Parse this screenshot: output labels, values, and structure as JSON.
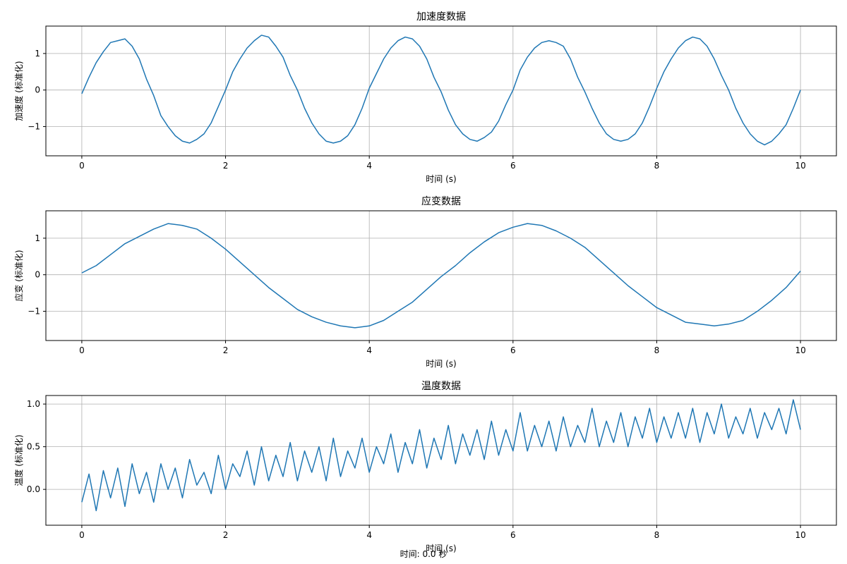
{
  "footer": {
    "time_readout": "时间: 0.0 秒"
  },
  "chart_data": [
    {
      "type": "line",
      "title": "加速度数据",
      "xlabel": "时间 (s)",
      "ylabel": "加速度 (标准化)",
      "xlim": [
        -0.5,
        10.5
      ],
      "ylim": [
        -1.8,
        1.75
      ],
      "xticks": [
        0,
        2,
        4,
        6,
        8,
        10
      ],
      "yticks": [
        -1,
        0,
        1
      ],
      "grid": true,
      "line_color": "#1f77b4",
      "series": [
        {
          "x": [
            0,
            0.1,
            0.2,
            0.3,
            0.4,
            0.5,
            0.6,
            0.7,
            0.8,
            0.9,
            1.0,
            1.1,
            1.2,
            1.3,
            1.4,
            1.5,
            1.6,
            1.7,
            1.8,
            1.9,
            2.0,
            2.1,
            2.2,
            2.3,
            2.4,
            2.5,
            2.6,
            2.7,
            2.8,
            2.9,
            3.0,
            3.1,
            3.2,
            3.3,
            3.4,
            3.5,
            3.6,
            3.7,
            3.8,
            3.9,
            4.0,
            4.1,
            4.2,
            4.3,
            4.4,
            4.5,
            4.6,
            4.7,
            4.8,
            4.9,
            5.0,
            5.1,
            5.2,
            5.3,
            5.4,
            5.5,
            5.6,
            5.7,
            5.8,
            5.9,
            6.0,
            6.1,
            6.2,
            6.3,
            6.4,
            6.5,
            6.6,
            6.7,
            6.8,
            6.9,
            7.0,
            7.1,
            7.2,
            7.3,
            7.4,
            7.5,
            7.6,
            7.7,
            7.8,
            7.9,
            8.0,
            8.1,
            8.2,
            8.3,
            8.4,
            8.5,
            8.6,
            8.7,
            8.8,
            8.9,
            9.0,
            9.1,
            9.2,
            9.3,
            9.4,
            9.5,
            9.6,
            9.7,
            9.8,
            9.9,
            10.0
          ],
          "y": [
            -0.1,
            0.35,
            0.75,
            1.05,
            1.3,
            1.35,
            1.4,
            1.2,
            0.85,
            0.3,
            -0.15,
            -0.7,
            -1.0,
            -1.25,
            -1.4,
            -1.45,
            -1.35,
            -1.2,
            -0.9,
            -0.45,
            0.0,
            0.5,
            0.85,
            1.15,
            1.35,
            1.5,
            1.45,
            1.2,
            0.9,
            0.4,
            0.0,
            -0.5,
            -0.9,
            -1.2,
            -1.4,
            -1.45,
            -1.4,
            -1.25,
            -0.95,
            -0.5,
            0.05,
            0.45,
            0.85,
            1.15,
            1.35,
            1.45,
            1.4,
            1.2,
            0.85,
            0.35,
            -0.05,
            -0.55,
            -0.95,
            -1.2,
            -1.35,
            -1.4,
            -1.3,
            -1.15,
            -0.85,
            -0.4,
            0.0,
            0.55,
            0.9,
            1.15,
            1.3,
            1.35,
            1.3,
            1.2,
            0.85,
            0.35,
            -0.05,
            -0.5,
            -0.9,
            -1.2,
            -1.35,
            -1.4,
            -1.35,
            -1.2,
            -0.9,
            -0.45,
            0.05,
            0.5,
            0.85,
            1.15,
            1.35,
            1.45,
            1.4,
            1.2,
            0.85,
            0.4,
            0.0,
            -0.5,
            -0.9,
            -1.2,
            -1.4,
            -1.5,
            -1.4,
            -1.2,
            -0.95,
            -0.5,
            0.0
          ]
        }
      ]
    },
    {
      "type": "line",
      "title": "应变数据",
      "xlabel": "时间 (s)",
      "ylabel": "应变 (标准化)",
      "xlim": [
        -0.5,
        10.5
      ],
      "ylim": [
        -1.8,
        1.75
      ],
      "xticks": [
        0,
        2,
        4,
        6,
        8,
        10
      ],
      "yticks": [
        -1,
        0,
        1
      ],
      "grid": true,
      "line_color": "#1f77b4",
      "series": [
        {
          "x": [
            0,
            0.2,
            0.4,
            0.6,
            0.8,
            1.0,
            1.2,
            1.4,
            1.6,
            1.8,
            2.0,
            2.2,
            2.4,
            2.6,
            2.8,
            3.0,
            3.2,
            3.4,
            3.6,
            3.8,
            4.0,
            4.2,
            4.4,
            4.6,
            4.8,
            5.0,
            5.2,
            5.4,
            5.6,
            5.8,
            6.0,
            6.2,
            6.4,
            6.6,
            6.8,
            7.0,
            7.2,
            7.4,
            7.6,
            7.8,
            8.0,
            8.2,
            8.4,
            8.6,
            8.8,
            9.0,
            9.2,
            9.4,
            9.6,
            9.8,
            10.0
          ],
          "y": [
            0.05,
            0.25,
            0.55,
            0.85,
            1.05,
            1.25,
            1.4,
            1.35,
            1.25,
            1.0,
            0.7,
            0.35,
            0.0,
            -0.35,
            -0.65,
            -0.95,
            -1.15,
            -1.3,
            -1.4,
            -1.45,
            -1.4,
            -1.25,
            -1.0,
            -0.75,
            -0.4,
            -0.05,
            0.25,
            0.6,
            0.9,
            1.15,
            1.3,
            1.4,
            1.35,
            1.2,
            1.0,
            0.75,
            0.4,
            0.05,
            -0.3,
            -0.6,
            -0.9,
            -1.1,
            -1.3,
            -1.35,
            -1.4,
            -1.35,
            -1.25,
            -1.0,
            -0.7,
            -0.35,
            0.1
          ]
        }
      ]
    },
    {
      "type": "line",
      "title": "温度数据",
      "xlabel": "时间 (s)",
      "ylabel": "温度 (标准化)",
      "xlim": [
        -0.5,
        10.5
      ],
      "ylim": [
        -0.42,
        1.1
      ],
      "xticks": [
        0,
        2,
        4,
        6,
        8,
        10
      ],
      "yticks": [
        0.0,
        0.5,
        1.0
      ],
      "yticklabels": [
        "0.0",
        "0.5",
        "1.0"
      ],
      "grid": true,
      "line_color": "#1f77b4",
      "series": [
        {
          "x": [
            0,
            0.1,
            0.2,
            0.3,
            0.4,
            0.5,
            0.6,
            0.7,
            0.8,
            0.9,
            1.0,
            1.1,
            1.2,
            1.3,
            1.4,
            1.5,
            1.6,
            1.7,
            1.8,
            1.9,
            2.0,
            2.1,
            2.2,
            2.3,
            2.4,
            2.5,
            2.6,
            2.7,
            2.8,
            2.9,
            3.0,
            3.1,
            3.2,
            3.3,
            3.4,
            3.5,
            3.6,
            3.7,
            3.8,
            3.9,
            4.0,
            4.1,
            4.2,
            4.3,
            4.4,
            4.5,
            4.6,
            4.7,
            4.8,
            4.9,
            5.0,
            5.1,
            5.2,
            5.3,
            5.4,
            5.5,
            5.6,
            5.7,
            5.8,
            5.9,
            6.0,
            6.1,
            6.2,
            6.3,
            6.4,
            6.5,
            6.6,
            6.7,
            6.8,
            6.9,
            7.0,
            7.1,
            7.2,
            7.3,
            7.4,
            7.5,
            7.6,
            7.7,
            7.8,
            7.9,
            8.0,
            8.1,
            8.2,
            8.3,
            8.4,
            8.5,
            8.6,
            8.7,
            8.8,
            8.9,
            9.0,
            9.1,
            9.2,
            9.3,
            9.4,
            9.5,
            9.6,
            9.7,
            9.8,
            9.9,
            10.0
          ],
          "y": [
            -0.15,
            0.18,
            -0.25,
            0.22,
            -0.1,
            0.25,
            -0.2,
            0.3,
            -0.05,
            0.2,
            -0.15,
            0.3,
            0.0,
            0.25,
            -0.1,
            0.35,
            0.05,
            0.2,
            -0.05,
            0.4,
            0.0,
            0.3,
            0.15,
            0.45,
            0.05,
            0.5,
            0.1,
            0.4,
            0.15,
            0.55,
            0.1,
            0.45,
            0.2,
            0.5,
            0.1,
            0.6,
            0.15,
            0.45,
            0.25,
            0.6,
            0.2,
            0.5,
            0.3,
            0.65,
            0.2,
            0.55,
            0.3,
            0.7,
            0.25,
            0.6,
            0.35,
            0.75,
            0.3,
            0.65,
            0.4,
            0.7,
            0.35,
            0.8,
            0.4,
            0.7,
            0.45,
            0.9,
            0.45,
            0.75,
            0.5,
            0.8,
            0.45,
            0.85,
            0.5,
            0.75,
            0.55,
            0.95,
            0.5,
            0.8,
            0.55,
            0.9,
            0.5,
            0.85,
            0.6,
            0.95,
            0.55,
            0.85,
            0.6,
            0.9,
            0.6,
            0.95,
            0.55,
            0.9,
            0.65,
            1.0,
            0.6,
            0.85,
            0.65,
            0.95,
            0.6,
            0.9,
            0.7,
            0.95,
            0.65,
            1.05,
            0.7
          ]
        }
      ]
    }
  ]
}
